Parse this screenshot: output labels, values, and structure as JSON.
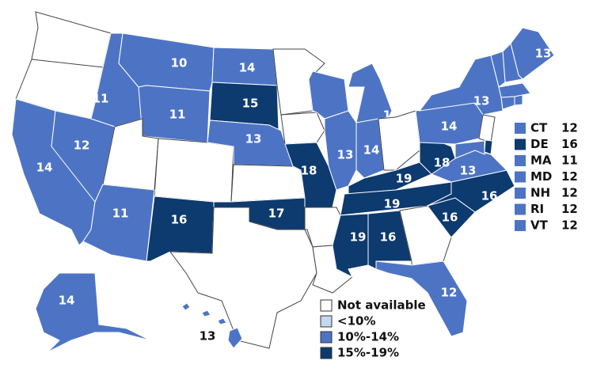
{
  "states": [
    {
      "color": "#ffffff"
    },
    {
      "color": "#ffffff"
    },
    {
      "value": 14,
      "color": "#4d74c4"
    },
    {
      "value": 12,
      "color": "#4d74c4"
    },
    {
      "value": 11,
      "color": "#4d74c4"
    },
    {
      "value": 10,
      "color": "#4d74c4"
    },
    {
      "value": 11,
      "color": "#4d74c4"
    },
    {
      "color": "#ffffff"
    },
    {
      "color": "#ffffff"
    },
    {
      "value": 11,
      "color": "#4d74c4"
    },
    {
      "value": 16,
      "color": "#0d3a6f"
    },
    {
      "value": 14,
      "color": "#4d74c4"
    },
    {
      "value": 15,
      "color": "#0d3a6f"
    },
    {
      "value": 13,
      "color": "#4d74c4"
    },
    {
      "color": "#ffffff"
    },
    {
      "value": 17,
      "color": "#0d3a6f"
    },
    {
      "color": "#ffffff"
    },
    {
      "color": "#ffffff"
    },
    {
      "color": "#ffffff"
    },
    {
      "value": 13,
      "color": "#4d74c4"
    },
    {
      "value": 18,
      "color": "#0d3a6f"
    },
    {
      "color": "#ffffff"
    },
    {
      "color": "#ffffff"
    },
    {
      "value": 13,
      "color": "#4d74c4"
    },
    {
      "value": 14,
      "color": "#4d74c4"
    },
    {
      "value": 14,
      "color": "#4d74c4"
    },
    {
      "color": "#ffffff"
    },
    {
      "value": 19,
      "color": "#0d3a6f"
    },
    {
      "value": 19,
      "color": "#0d3a6f"
    },
    {
      "value": 19,
      "color": "#0d3a6f"
    },
    {
      "value": 16,
      "color": "#0d3a6f"
    },
    {
      "color": "#ffffff"
    },
    {
      "value": 12,
      "color": "#4d74c4"
    },
    {
      "value": 16,
      "color": "#0d3a6f"
    },
    {
      "value": 16,
      "color": "#0d3a6f"
    },
    {
      "value": 13,
      "color": "#4d74c4"
    },
    {
      "value": 18,
      "color": "#0d3a6f"
    },
    {
      "value": 14,
      "color": "#4d74c4"
    },
    {
      "value": 13,
      "color": "#4d74c4"
    },
    {
      "value": 13,
      "color": "#4d74c4"
    },
    {
      "color": "#ffffff"
    },
    {
      "value": 14,
      "color": "#4d74c4"
    },
    {
      "value": 13,
      "color": "#4d74c4"
    }
  ],
  "small_states": [
    {
      "abbr": "CT",
      "value": 12,
      "color": "#4d74c4"
    },
    {
      "abbr": "DE",
      "value": 16,
      "color": "#0d3a6f"
    },
    {
      "abbr": "MA",
      "value": 11,
      "color": "#4d74c4"
    },
    {
      "abbr": "MD",
      "value": 12,
      "color": "#4d74c4"
    },
    {
      "abbr": "NH",
      "value": 12,
      "color": "#4d74c4"
    },
    {
      "abbr": "RI",
      "value": 12,
      "color": "#4d74c4"
    },
    {
      "abbr": "VT",
      "value": 12,
      "color": "#4d74c4"
    }
  ],
  "legend": [
    {
      "label": "Not available",
      "color": "#ffffff"
    },
    {
      "label": "<10%",
      "color": "#c5d8f0"
    },
    {
      "label": "10%-14%",
      "color": "#4d74c4"
    },
    {
      "label": "15%-19%",
      "color": "#0d3a6f"
    }
  ]
}
